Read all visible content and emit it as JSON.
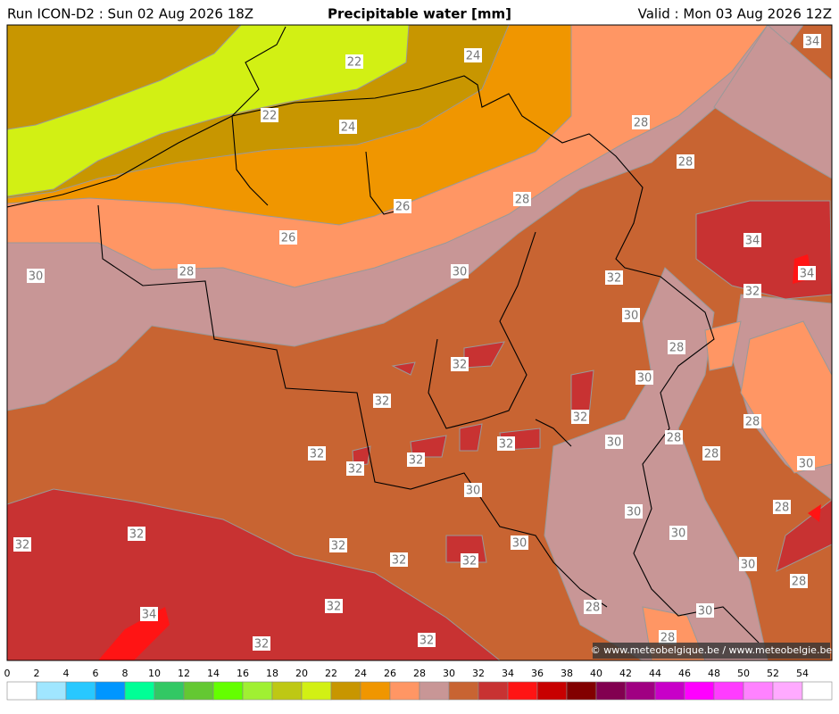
{
  "header": {
    "run": "Run ICON-D2 : Sun 02 Aug 2026 18Z",
    "title": "Precipitable water [mm]",
    "valid": "Valid : Mon 03 Aug 2026 12Z"
  },
  "map": {
    "contour_labels": [
      "22",
      "24",
      "34",
      "22",
      "24",
      "28",
      "28",
      "28",
      "26",
      "26",
      "34",
      "30",
      "28",
      "30",
      "32",
      "34",
      "32",
      "30",
      "28",
      "32",
      "30",
      "32",
      "32",
      "28",
      "30",
      "28",
      "32",
      "32",
      "32",
      "32",
      "28",
      "30",
      "30",
      "30",
      "28",
      "32",
      "32",
      "32",
      "30",
      "32",
      "32",
      "30",
      "30",
      "28",
      "34",
      "32",
      "28",
      "30",
      "32",
      "32",
      "28"
    ],
    "credit": "© www.meteobelgique.be / www.meteobelgie.be"
  },
  "colorbar": {
    "ticks": [
      0,
      2,
      4,
      6,
      8,
      10,
      12,
      14,
      16,
      18,
      20,
      22,
      24,
      26,
      28,
      30,
      32,
      34,
      36,
      38,
      40,
      42,
      44,
      46,
      48,
      50,
      52,
      54
    ],
    "colors": [
      "#ffffff",
      "#a0e6ff",
      "#28c8ff",
      "#0096ff",
      "#00ff96",
      "#32c864",
      "#64c832",
      "#64ff00",
      "#a0f032",
      "#bec814",
      "#d2f014",
      "#c89600",
      "#f09600",
      "#ff9664",
      "#c89696",
      "#c86432",
      "#c83232",
      "#ff1414",
      "#c80000",
      "#820000",
      "#820050",
      "#a00082",
      "#c800c8",
      "#ff00ff",
      "#ff3cff",
      "#ff82ff",
      "#ffaaff",
      "#ffffff"
    ]
  }
}
